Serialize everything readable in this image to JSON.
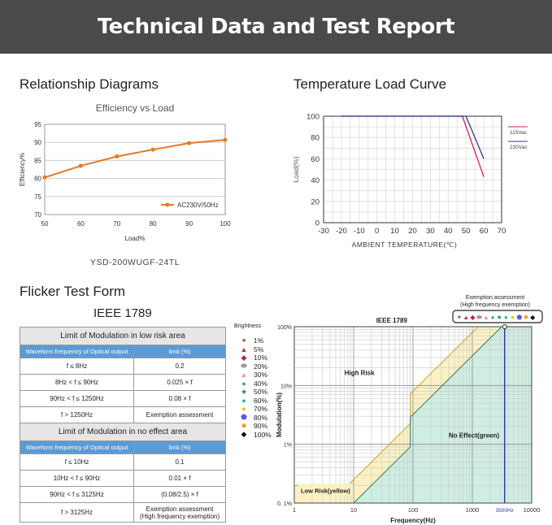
{
  "banner": {
    "title": "Technical Data and Test Report"
  },
  "sections": {
    "relationship": "Relationship Diagrams",
    "temperature": "Temperature Load Curve",
    "flicker": "Flicker Test Form"
  },
  "chart_data": [
    {
      "type": "line",
      "title": "Efficiency vs Load",
      "xlabel": "Load%",
      "ylabel": "Efficiency%",
      "caption": "YSD-200WUGF-24TL",
      "x": [
        50,
        60,
        70,
        80,
        90,
        100
      ],
      "xlim": [
        50,
        100
      ],
      "ylim": [
        70,
        95
      ],
      "xticks": [
        "50",
        "60",
        "70",
        "80",
        "90",
        "100"
      ],
      "yticks": [
        "70",
        "75",
        "80",
        "85",
        "90",
        "95"
      ],
      "grid": true,
      "legend_position": "bottom-right",
      "color": "#e87722",
      "series": [
        {
          "name": "AC230V/50Hz",
          "values": [
            80.3,
            83.5,
            86.1,
            88.0,
            89.8,
            90.7
          ]
        }
      ]
    },
    {
      "type": "line",
      "xlabel": "AMBIENT TEMPERATURE(℃)",
      "ylabel": "Load(%)",
      "xlim": [
        -30,
        70
      ],
      "ylim": [
        0,
        100
      ],
      "xticks": [
        "-30",
        "-20",
        "-10",
        "0",
        "10",
        "20",
        "30",
        "40",
        "50",
        "60",
        "70"
      ],
      "yticks": [
        "0",
        "20",
        "40",
        "60",
        "80",
        "100"
      ],
      "grid": true,
      "legend_position": "right",
      "series": [
        {
          "name": "115Vac",
          "color": "#d81b60",
          "points": [
            [
              -20,
              100
            ],
            [
              48,
              100
            ],
            [
              60,
              43
            ]
          ]
        },
        {
          "name": "230Vac",
          "color": "#2b3a8c",
          "points": [
            [
              -20,
              100
            ],
            [
              50,
              100
            ],
            [
              60,
              60
            ]
          ]
        }
      ]
    },
    {
      "type": "area",
      "title": "IEEE 1789",
      "xlabel": "Frequency(Hz)",
      "ylabel": "Modulation(%)",
      "xscale": "log",
      "yscale": "log",
      "xlim": [
        1,
        10000
      ],
      "ylim": [
        0.1,
        100
      ],
      "xticks": [
        "1",
        "10",
        "100",
        "1000",
        "3500Hz",
        "10000"
      ],
      "yticks": [
        "0. 1%",
        "1%",
        "10%",
        "100%"
      ],
      "regions": [
        "High Risk",
        "No Effect(green)",
        "Low Risk(yellow)"
      ],
      "marker_frequency": "3500Hz",
      "exemption_title": "Exemption assessment",
      "exemption_subtitle": "(High frequency exemption)"
    }
  ],
  "flicker": {
    "standard": "IEEE 1789",
    "low_risk_title": "Limit of Modulation in low risk area",
    "no_effect_title": "Limit of Modulation in no effect area",
    "col_freq": "Waveform frequency of Optical output",
    "col_limit": "limit (%)",
    "low_rows": [
      {
        "f": "f ≤ 8Hz",
        "limit": "0.2"
      },
      {
        "f": "8Hz < f ≤ 90Hz",
        "limit": "0.025 × f"
      },
      {
        "f": "90Hz < f ≤ 1250Hz",
        "limit": "0.08 × f"
      },
      {
        "f": "f > 1250Hz",
        "limit": "Exemption assessment"
      }
    ],
    "no_rows": [
      {
        "f": "f ≤ 10Hz",
        "limit": "0.1"
      },
      {
        "f": "10Hz < f ≤ 90Hz",
        "limit": "0.01 × f"
      },
      {
        "f": "90Hz < f ≤ 3125Hz",
        "limit": "(0.08/2.5) × f"
      },
      {
        "f": "f > 3125Hz",
        "limit": "Exemption assessment",
        "limit2": "(High frequency exemption)"
      }
    ]
  },
  "brightness": {
    "title": "Brightness",
    "items": [
      {
        "label": "1%",
        "sym": "✦",
        "color": "#a0522d"
      },
      {
        "label": "5%",
        "sym": "▲",
        "color": "#c0392b"
      },
      {
        "label": "10%",
        "sym": "◆",
        "color": "#c2185b"
      },
      {
        "label": "20%",
        "sym": "⬬",
        "color": "#999999"
      },
      {
        "label": "30%",
        "sym": "▲",
        "color": "#f48fb1"
      },
      {
        "label": "40%",
        "sym": "●",
        "color": "#4a90c8"
      },
      {
        "label": "50%",
        "sym": "★",
        "color": "#2e8b57"
      },
      {
        "label": "60%",
        "sym": "●",
        "color": "#20b2aa"
      },
      {
        "label": "70%",
        "sym": "●",
        "color": "#e6c200"
      },
      {
        "label": "80%",
        "sym": "⬟",
        "color": "#5b5bd6"
      },
      {
        "label": "90%",
        "sym": "✸",
        "color": "#f39c12"
      },
      {
        "label": "100%",
        "sym": "◆",
        "color": "#111111"
      }
    ]
  }
}
